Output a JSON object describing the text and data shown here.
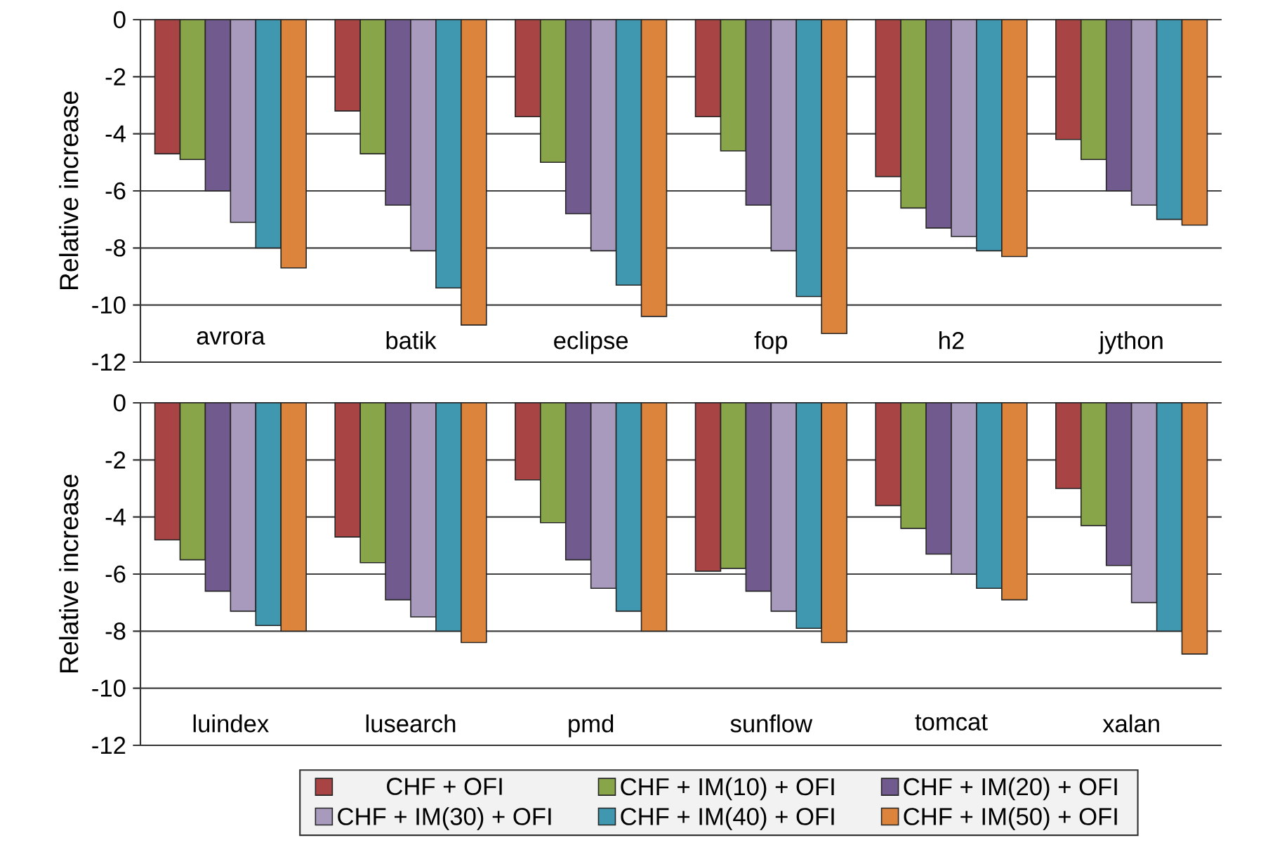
{
  "chart_data": [
    {
      "type": "bar",
      "ylabel": "Relative increase",
      "categories": [
        "avrora",
        "batik",
        "eclipse",
        "fop",
        "h2",
        "jython"
      ],
      "ylim": [
        -12,
        0
      ],
      "yticks": [
        0,
        -2,
        -4,
        -6,
        -8,
        -10,
        -12
      ],
      "grid": "y",
      "legend": false,
      "series": [
        {
          "color": "#a84444",
          "values": [
            -4.7,
            -3.2,
            -3.4,
            -3.4,
            -5.5,
            -4.2
          ]
        },
        {
          "color": "#88a54a",
          "values": [
            -4.9,
            -4.7,
            -5.0,
            -4.6,
            -6.6,
            -4.9
          ]
        },
        {
          "color": "#715a8e",
          "values": [
            -6.0,
            -6.5,
            -6.8,
            -6.5,
            -7.3,
            -6.0
          ]
        },
        {
          "color": "#a89abd",
          "values": [
            -7.1,
            -8.1,
            -8.1,
            -8.1,
            -7.6,
            -6.5
          ]
        },
        {
          "color": "#3f98b0",
          "values": [
            -8.0,
            -9.4,
            -9.3,
            -9.7,
            -8.1,
            -7.0
          ]
        },
        {
          "color": "#dc843b",
          "values": [
            -8.7,
            -10.7,
            -10.4,
            -11.0,
            -8.3,
            -7.2
          ]
        }
      ]
    },
    {
      "type": "bar",
      "ylabel": "Relative increase",
      "categories": [
        "luindex",
        "lusearch",
        "pmd",
        "sunflow",
        "tomcat",
        "xalan"
      ],
      "ylim": [
        -12,
        0
      ],
      "yticks": [
        0,
        -2,
        -4,
        -6,
        -8,
        -10,
        -12
      ],
      "grid": "y",
      "legend": "bottom",
      "series": [
        {
          "name": "CHF + OFI",
          "color": "#a84444",
          "values": [
            -4.8,
            -4.7,
            -2.7,
            -5.9,
            -3.6,
            -3.0
          ]
        },
        {
          "name": "CHF + IM(10) + OFI",
          "color": "#88a54a",
          "values": [
            -5.5,
            -5.6,
            -4.2,
            -5.8,
            -4.4,
            -4.3
          ]
        },
        {
          "name": "CHF + IM(20) + OFI",
          "color": "#715a8e",
          "values": [
            -6.6,
            -6.9,
            -5.5,
            -6.6,
            -5.3,
            -5.7
          ]
        },
        {
          "name": "CHF + IM(30) + OFI",
          "color": "#a89abd",
          "values": [
            -7.3,
            -7.5,
            -6.5,
            -7.3,
            -6.0,
            -7.0
          ]
        },
        {
          "name": "CHF + IM(40) + OFI",
          "color": "#3f98b0",
          "values": [
            -7.8,
            -8.0,
            -7.3,
            -7.9,
            -6.5,
            -8.0
          ]
        },
        {
          "name": "CHF + IM(50) + OFI",
          "color": "#dc843b",
          "values": [
            -8.0,
            -8.4,
            -8.0,
            -8.4,
            -6.9,
            -8.8
          ]
        }
      ]
    }
  ]
}
